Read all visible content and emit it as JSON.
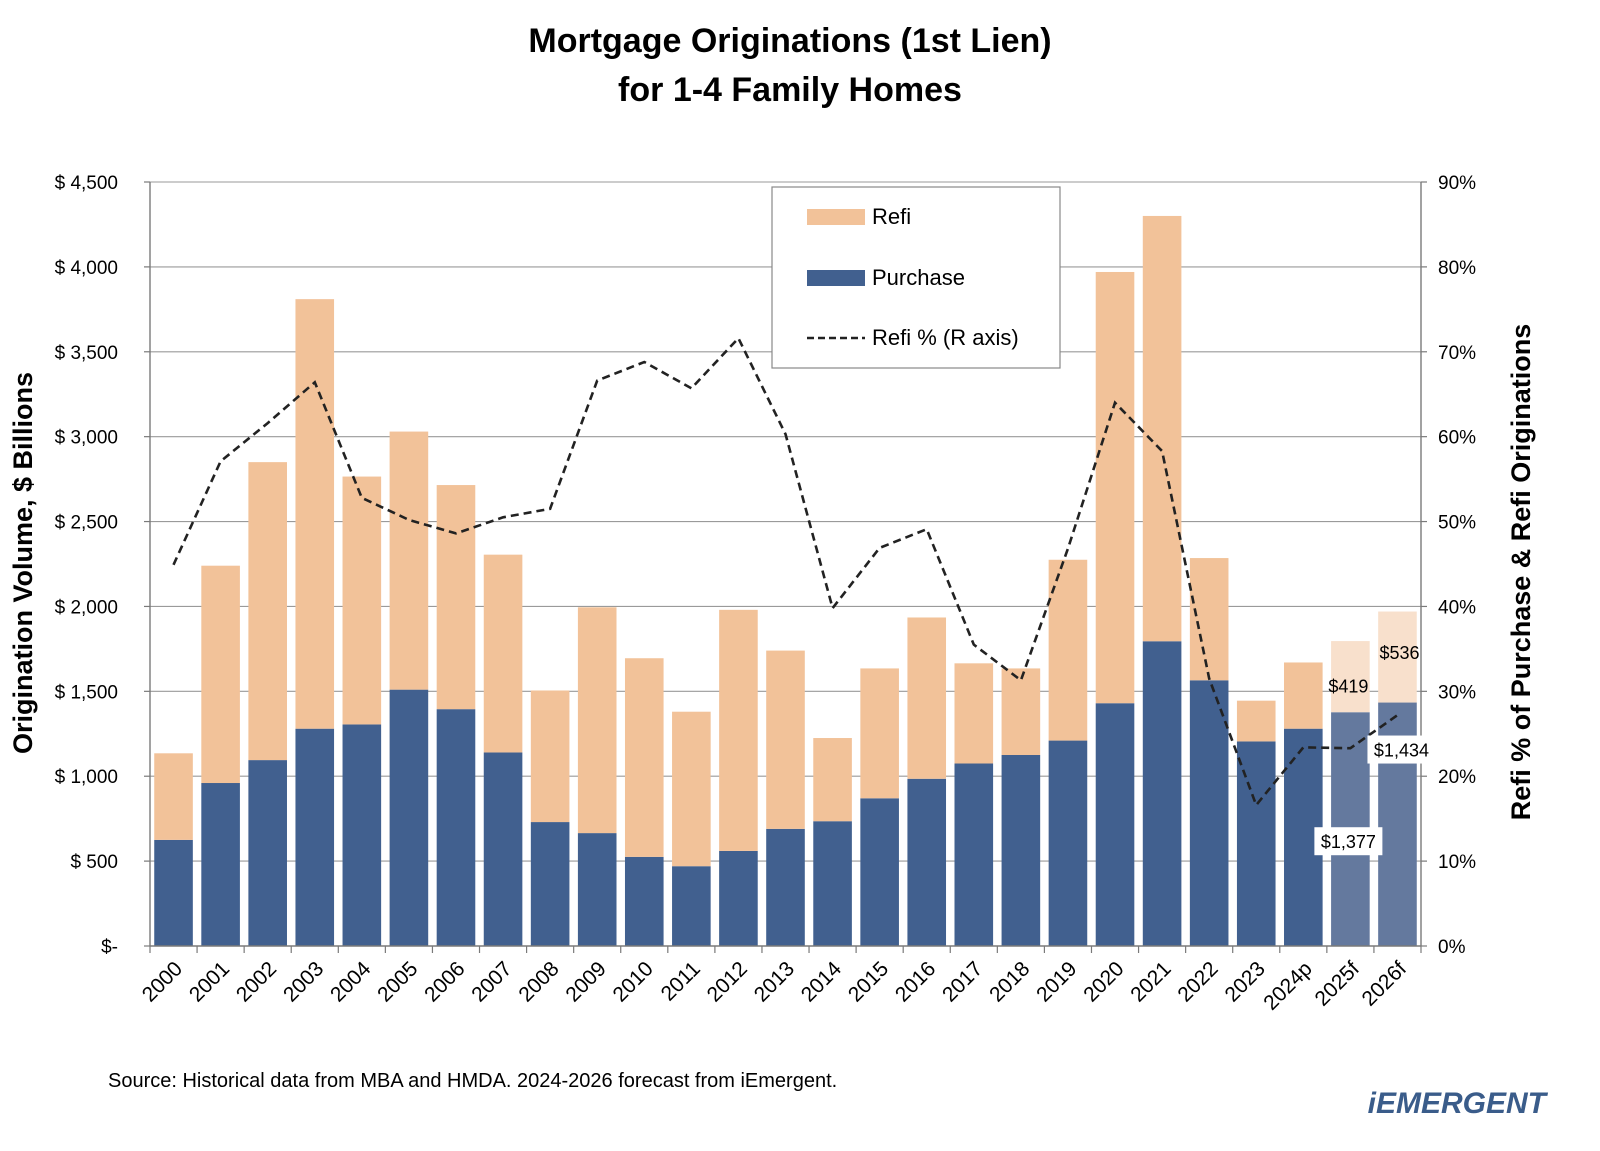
{
  "chart_data": {
    "type": "bar",
    "stacked": true,
    "title_lines": [
      "Mortgage Originations (1st Lien)",
      "for 1-4 Family Homes"
    ],
    "ylabel": "Origination Volume, $ Billions",
    "y2label": "Refi % of Purchase & Refi Originations",
    "ylim": [
      0,
      4500
    ],
    "y2lim": [
      0,
      90
    ],
    "yticks": [
      0,
      500,
      1000,
      1500,
      2000,
      2500,
      3000,
      3500,
      4000,
      4500
    ],
    "ytick_labels": [
      "$-",
      "$ 500",
      "$ 1,000",
      "$ 1,500",
      "$ 2,000",
      "$ 2,500",
      "$ 3,000",
      "$ 3,500",
      "$ 4,000",
      "$ 4,500"
    ],
    "y2ticks": [
      0,
      10,
      20,
      30,
      40,
      50,
      60,
      70,
      80,
      90
    ],
    "y2tick_labels": [
      "0%",
      "10%",
      "20%",
      "30%",
      "40%",
      "50%",
      "60%",
      "70%",
      "80%",
      "90%"
    ],
    "grid": "horizontal",
    "legend_position": "top-center",
    "categories": [
      "2000",
      "2001",
      "2002",
      "2003",
      "2004",
      "2005",
      "2006",
      "2007",
      "2008",
      "2009",
      "2010",
      "2011",
      "2012",
      "2013",
      "2014",
      "2015",
      "2016",
      "2017",
      "2018",
      "2019",
      "2020",
      "2021",
      "2022",
      "2023",
      "2024p",
      "2025f",
      "2026f"
    ],
    "forecast_categories": [
      "2025f",
      "2026f"
    ],
    "series": [
      {
        "name": "Purchase",
        "color": "#41608f",
        "forecast_color": "#64799e",
        "values": [
          625,
          960,
          1095,
          1280,
          1305,
          1510,
          1395,
          1140,
          730,
          665,
          525,
          470,
          560,
          690,
          735,
          870,
          985,
          1075,
          1125,
          1210,
          1430,
          1795,
          1565,
          1205,
          1280,
          1377,
          1434
        ]
      },
      {
        "name": "Refi",
        "color": "#f2c299",
        "forecast_color": "#f8e0cc",
        "values": [
          510,
          1280,
          1755,
          2530,
          1460,
          1520,
          1320,
          1165,
          775,
          1330,
          1170,
          910,
          1420,
          1050,
          490,
          765,
          950,
          590,
          510,
          1065,
          2540,
          2505,
          720,
          240,
          390,
          419,
          536
        ]
      },
      {
        "name": "Refi % (R axis)",
        "type": "line",
        "axis": "right",
        "color": "#222222",
        "dash": true,
        "values": [
          44.9,
          57.1,
          61.6,
          66.4,
          52.8,
          50.2,
          48.6,
          50.5,
          51.5,
          66.6,
          68.8,
          65.7,
          71.6,
          60.3,
          39.8,
          46.9,
          49.1,
          35.5,
          31.3,
          46.8,
          64.0,
          58.3,
          31.5,
          16.6,
          23.4,
          23.3,
          27.2
        ]
      }
    ],
    "data_labels": [
      {
        "category": "2025f",
        "series": "Refi",
        "text": "$419"
      },
      {
        "category": "2026f",
        "series": "Refi",
        "text": "$536"
      },
      {
        "category": "2025f",
        "series": "Purchase",
        "text": "$1,377"
      },
      {
        "category": "2026f",
        "series": "Purchase",
        "text": "$1,434"
      }
    ]
  },
  "legend": {
    "items": [
      {
        "label": "Refi",
        "kind": "swatch",
        "color": "#f2c299"
      },
      {
        "label": "Purchase",
        "kind": "swatch",
        "color": "#41608f"
      },
      {
        "label": "Refi % (R axis)",
        "kind": "dash",
        "color": "#222222"
      }
    ]
  },
  "footer": {
    "source": "Source:  Historical data from MBA and HMDA.  2024-2026 forecast from iEmergent.",
    "logo": "iEMERGENT"
  }
}
